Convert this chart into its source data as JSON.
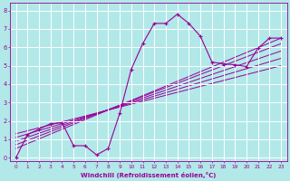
{
  "xlabel": "Windchill (Refroidissement éolien,°C)",
  "bg_color": "#b2e8e8",
  "grid_color": "#ffffff",
  "line_color": "#990099",
  "xlim": [
    -0.5,
    23.5
  ],
  "ylim": [
    -0.2,
    8.4
  ],
  "xticks": [
    0,
    1,
    2,
    3,
    4,
    5,
    6,
    7,
    8,
    9,
    10,
    11,
    12,
    13,
    14,
    15,
    16,
    17,
    18,
    19,
    20,
    21,
    22,
    23
  ],
  "yticks": [
    0,
    1,
    2,
    3,
    4,
    5,
    6,
    7,
    8
  ],
  "main_series": {
    "x": [
      0,
      1,
      2,
      3,
      4,
      5,
      6,
      7,
      8,
      9,
      10,
      11,
      12,
      13,
      14,
      15,
      16,
      17,
      18,
      19,
      20,
      21,
      22,
      23
    ],
    "y": [
      0.0,
      1.25,
      1.55,
      1.85,
      1.9,
      0.65,
      0.65,
      0.15,
      0.5,
      2.4,
      4.8,
      6.2,
      7.3,
      7.3,
      7.8,
      7.3,
      6.6,
      5.2,
      5.1,
      5.05,
      4.95,
      5.95,
      6.5,
      6.5
    ]
  },
  "straight_lines": [
    {
      "x": [
        0,
        23
      ],
      "y": [
        0.5,
        6.5
      ]
    },
    {
      "x": [
        0,
        23
      ],
      "y": [
        0.7,
        6.2
      ]
    },
    {
      "x": [
        0,
        23
      ],
      "y": [
        0.9,
        5.8
      ]
    },
    {
      "x": [
        0,
        23
      ],
      "y": [
        1.1,
        5.4
      ]
    },
    {
      "x": [
        0,
        23
      ],
      "y": [
        1.3,
        5.0
      ]
    }
  ]
}
